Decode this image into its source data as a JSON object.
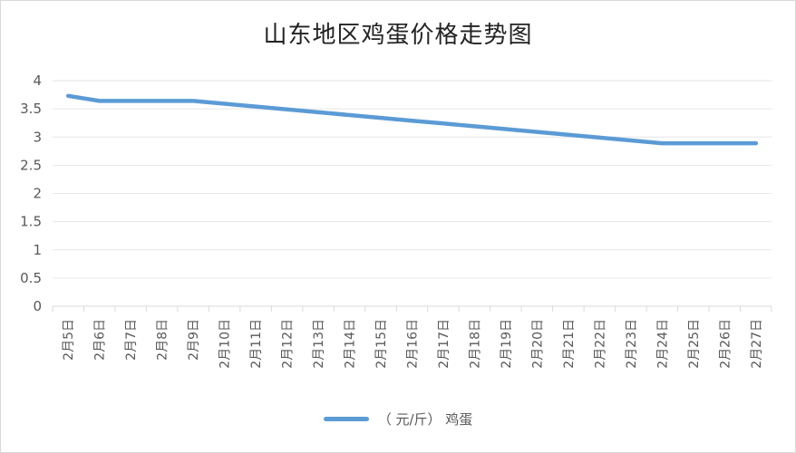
{
  "chart_data": {
    "type": "line",
    "title": "山东地区鸡蛋价格走势图",
    "xlabel": "",
    "ylabel": "",
    "ylim": [
      0,
      4
    ],
    "yticks": [
      "0",
      "0.5",
      "1",
      "1.5",
      "2",
      "2.5",
      "3",
      "3.5",
      "4"
    ],
    "grid": true,
    "legend_position": "bottom",
    "categories": [
      "2月5日",
      "2月6日",
      "2月7日",
      "2月8日",
      "2月9日",
      "2月10日",
      "2月11日",
      "2月12日",
      "2月13日",
      "2月14日",
      "2月15日",
      "2月16日",
      "2月17日",
      "2月18日",
      "2月19日",
      "2月20日",
      "2月21日",
      "2月22日",
      "2月23日",
      "2月24日",
      "2月25日",
      "2月26日",
      "2月27日"
    ],
    "series": [
      {
        "name": "（元/斤）鸡蛋",
        "color": "#5b9bd5",
        "values": [
          3.73,
          3.64,
          3.64,
          3.64,
          3.64,
          3.59,
          3.54,
          3.49,
          3.44,
          3.39,
          3.34,
          3.29,
          3.24,
          3.19,
          3.14,
          3.09,
          3.04,
          2.99,
          2.94,
          2.89,
          2.89,
          2.89,
          2.89
        ]
      }
    ]
  },
  "title": "山东地区鸡蛋价格走势图",
  "legend": {
    "label": "（ 元/斤） 鸡蛋"
  }
}
